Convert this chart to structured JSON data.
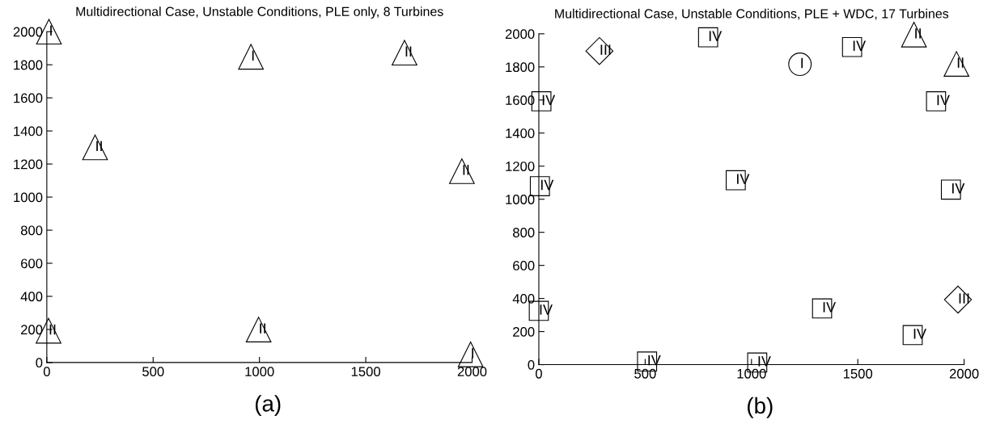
{
  "chart_data": [
    {
      "type": "scatter",
      "title": "Multidirectional Case, Unstable Conditions, PLE only, 8 Turbines",
      "xlim": [
        0,
        2000
      ],
      "ylim": [
        0,
        2000
      ],
      "xticks": [
        0,
        500,
        1000,
        1500,
        2000
      ],
      "yticks": [
        0,
        200,
        400,
        600,
        800,
        1000,
        1200,
        1400,
        1600,
        1800,
        2000
      ],
      "grid": false,
      "annotations": [
        "(a)"
      ],
      "series": [
        {
          "marker": "triangle",
          "color": "#000000",
          "x": [
            10,
            960,
            1682,
            227,
            1952,
            8,
            996,
            1993
          ],
          "values": [
            2000,
            1848,
            1873,
            1301,
            1157,
            192,
            199,
            49
          ],
          "value_labels": [
            "I",
            "I",
            "II",
            "II",
            "II",
            "II",
            "II",
            "I"
          ]
        }
      ]
    },
    {
      "type": "scatter",
      "title": "Multidirectional Case, Unstable Conditions, PLE + WDC, 17 Turbines",
      "xlim": [
        0,
        2000
      ],
      "ylim": [
        0,
        2000
      ],
      "xticks": [
        0,
        500,
        1000,
        1500,
        2000
      ],
      "yticks": [
        0,
        200,
        400,
        600,
        800,
        1000,
        1200,
        1400,
        1600,
        1800,
        2000
      ],
      "grid": false,
      "annotations": [
        "(b)"
      ],
      "series": [
        {
          "marker": "circle",
          "color": "#000000",
          "x": [
            1228
          ],
          "values": [
            1816
          ],
          "value_labels": [
            "I"
          ]
        },
        {
          "marker": "triangle",
          "color": "#000000",
          "x": [
            1764,
            1964
          ],
          "values": [
            1995,
            1818
          ],
          "value_labels": [
            "II",
            "II"
          ]
        },
        {
          "marker": "diamond",
          "color": "#000000",
          "x": [
            285,
            1971
          ],
          "values": [
            1896,
            393
          ],
          "value_labels": [
            "III",
            "III"
          ]
        },
        {
          "marker": "square",
          "color": "#000000",
          "x": [
            796,
            1473,
            12,
            1868,
            5,
            926,
            1938,
            0,
            1332,
            1758,
            509,
            1027
          ],
          "values": [
            1979,
            1920,
            1592,
            1592,
            1079,
            1115,
            1058,
            325,
            340,
            179,
            19,
            13
          ],
          "value_labels": [
            "IV",
            "IV",
            "IV",
            "IV",
            "IV",
            "IV",
            "IV",
            "IV",
            "IV",
            "IV",
            "IV",
            "IV"
          ]
        }
      ]
    }
  ]
}
